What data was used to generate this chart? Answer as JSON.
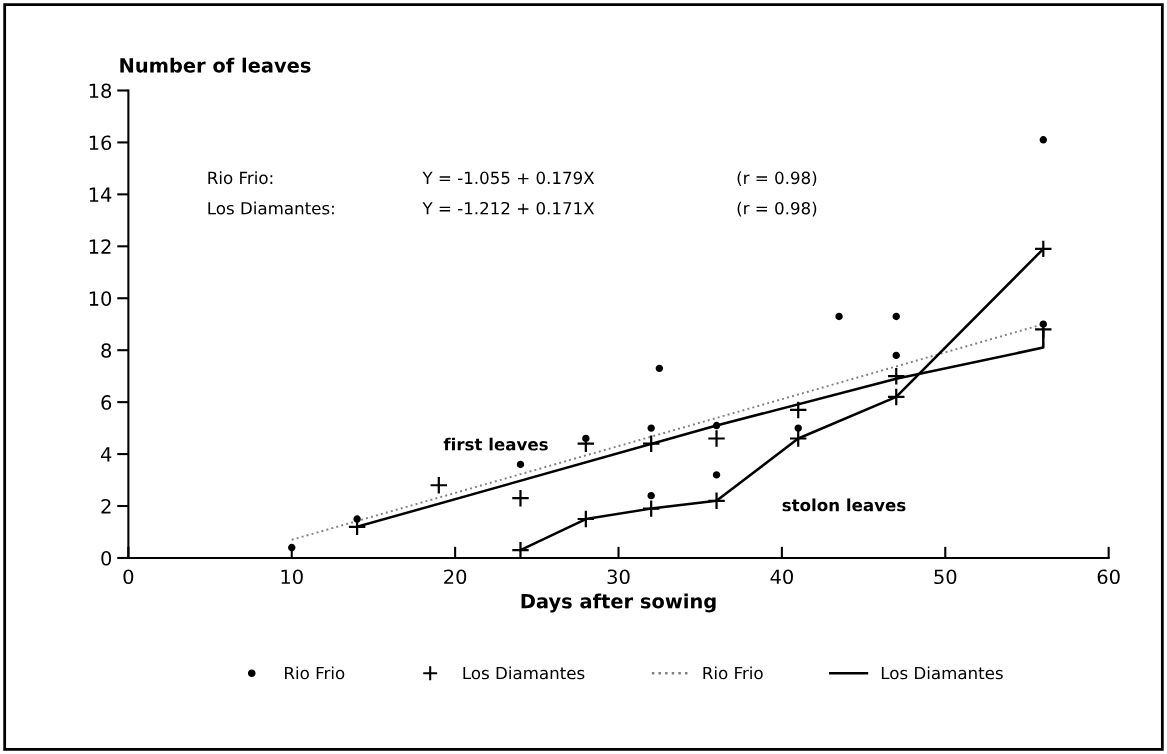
{
  "chart_data": {
    "type": "scatter",
    "xlabel": "Days after sowing",
    "ylabel": "Number of leaves",
    "xlim": [
      0,
      60
    ],
    "ylim": [
      0,
      18
    ],
    "xticks": [
      0,
      10,
      20,
      30,
      40,
      50,
      60
    ],
    "yticks": [
      0,
      2,
      4,
      6,
      8,
      10,
      12,
      14,
      16,
      18
    ],
    "legend": "bottom",
    "series": [
      {
        "name": "Rio Frio",
        "marker": "circle",
        "color": "#000000",
        "x": [
          10,
          14,
          24,
          28,
          32,
          32,
          32.5,
          36,
          36,
          41,
          43.5,
          47,
          47,
          56,
          56
        ],
        "values": [
          0.4,
          1.5,
          3.6,
          4.6,
          5.0,
          2.4,
          7.3,
          5.1,
          3.2,
          5.0,
          9.3,
          9.3,
          7.8,
          16.1,
          9.0
        ]
      },
      {
        "name": "Los Diamantes",
        "marker": "cross",
        "color": "#000000",
        "x": [
          14,
          19,
          24,
          24,
          28,
          28,
          32,
          32,
          36,
          36,
          41,
          41,
          47,
          47,
          56,
          56
        ],
        "values": [
          1.2,
          2.8,
          2.3,
          0.3,
          4.4,
          1.5,
          4.4,
          1.9,
          4.6,
          2.2,
          5.7,
          4.6,
          7.0,
          6.2,
          11.9,
          8.8
        ]
      },
      {
        "name": "Rio Frio",
        "type": "line",
        "line_style": "dotted",
        "color": "#808080",
        "x": [
          10,
          56
        ],
        "values": [
          0.7,
          9.0
        ]
      },
      {
        "name": "Los Diamantes",
        "type": "line",
        "line_style": "solid",
        "color": "#000000",
        "x": [
          14,
          36,
          47,
          56,
          56
        ],
        "values": [
          1.2,
          5.1,
          6.9,
          8.1,
          8.8
        ]
      },
      {
        "type": "line",
        "line_style": "solid",
        "color": "#000000",
        "x": [
          24,
          28,
          32,
          36,
          41,
          47,
          56
        ],
        "values": [
          0.3,
          1.5,
          1.9,
          2.2,
          4.6,
          6.2,
          11.9
        ]
      }
    ],
    "annotations": [
      "Rio Frio:",
      "Y = -1.055 + 0.179X",
      "(r = 0.98)",
      "Los Diamantes:",
      "Y = -1.212 + 0.171X",
      "(r = 0.98)",
      "first leaves",
      "stolon leaves"
    ]
  }
}
